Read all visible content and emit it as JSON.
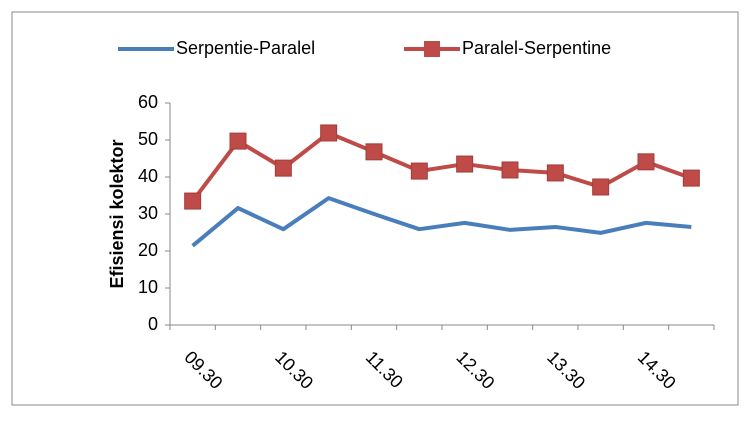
{
  "chart_data": {
    "type": "line",
    "y_label": "Efisiensi  kolektor",
    "categories": [
      "09.30",
      null,
      "10.30",
      null,
      "11.30",
      null,
      "12.30",
      null,
      "13.30",
      null,
      "14.30",
      null
    ],
    "series": [
      {
        "name": "Serpentie-Paralel",
        "color": "#4a7ebb",
        "marker": false,
        "values": [
          21.4,
          31.6,
          25.9,
          34.3,
          30.0,
          25.9,
          27.6,
          25.7,
          26.5,
          24.9,
          27.6,
          26.5
        ]
      },
      {
        "name": "Paralel-Serpentine",
        "color": "#be4b48",
        "marker": true,
        "values": [
          33.5,
          49.7,
          42.4,
          51.9,
          46.8,
          41.6,
          43.5,
          41.9,
          41.1,
          37.3,
          44.1,
          39.7
        ]
      }
    ],
    "ylim": [
      0,
      60
    ],
    "yticks": [
      0,
      10,
      20,
      30,
      40,
      50,
      60
    ],
    "grid": false,
    "legend": "top"
  }
}
